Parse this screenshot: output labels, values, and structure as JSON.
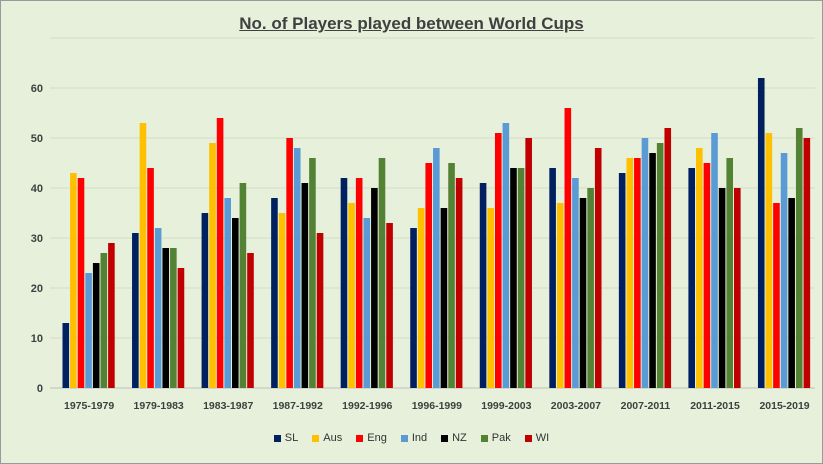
{
  "chart_data": {
    "type": "bar",
    "title": "No. of Players played between World Cups",
    "xlabel": "",
    "ylabel": "",
    "ylim": [
      0,
      60
    ],
    "yticks": [
      0,
      10,
      20,
      30,
      40,
      50,
      60
    ],
    "grid": true,
    "legend_position": "bottom",
    "categories": [
      "1975-1979",
      "1979-1983",
      "1983-1987",
      "1987-1992",
      "1992-1996",
      "1996-1999",
      "1999-2003",
      "2003-2007",
      "2007-2011",
      "2011-2015",
      "2015-2019"
    ],
    "series": [
      {
        "name": "SL",
        "color": "#002060",
        "values": [
          13,
          31,
          35,
          38,
          42,
          32,
          41,
          44,
          43,
          44,
          62
        ]
      },
      {
        "name": "Aus",
        "color": "#ffc000",
        "values": [
          43,
          53,
          49,
          35,
          37,
          36,
          36,
          37,
          46,
          48,
          51
        ]
      },
      {
        "name": "Eng",
        "color": "#ff0000",
        "values": [
          42,
          44,
          54,
          50,
          42,
          45,
          51,
          56,
          46,
          45,
          37
        ]
      },
      {
        "name": "Ind",
        "color": "#5b9bd5",
        "values": [
          23,
          32,
          38,
          48,
          34,
          48,
          53,
          42,
          50,
          51,
          47
        ]
      },
      {
        "name": "NZ",
        "color": "#000000",
        "values": [
          25,
          28,
          34,
          41,
          40,
          36,
          44,
          38,
          47,
          40,
          38
        ]
      },
      {
        "name": "Pak",
        "color": "#548235",
        "values": [
          27,
          28,
          41,
          46,
          46,
          45,
          44,
          40,
          49,
          46,
          52
        ]
      },
      {
        "name": "WI",
        "color": "#c00000",
        "values": [
          29,
          24,
          27,
          31,
          33,
          42,
          50,
          48,
          52,
          40,
          50
        ]
      }
    ]
  }
}
